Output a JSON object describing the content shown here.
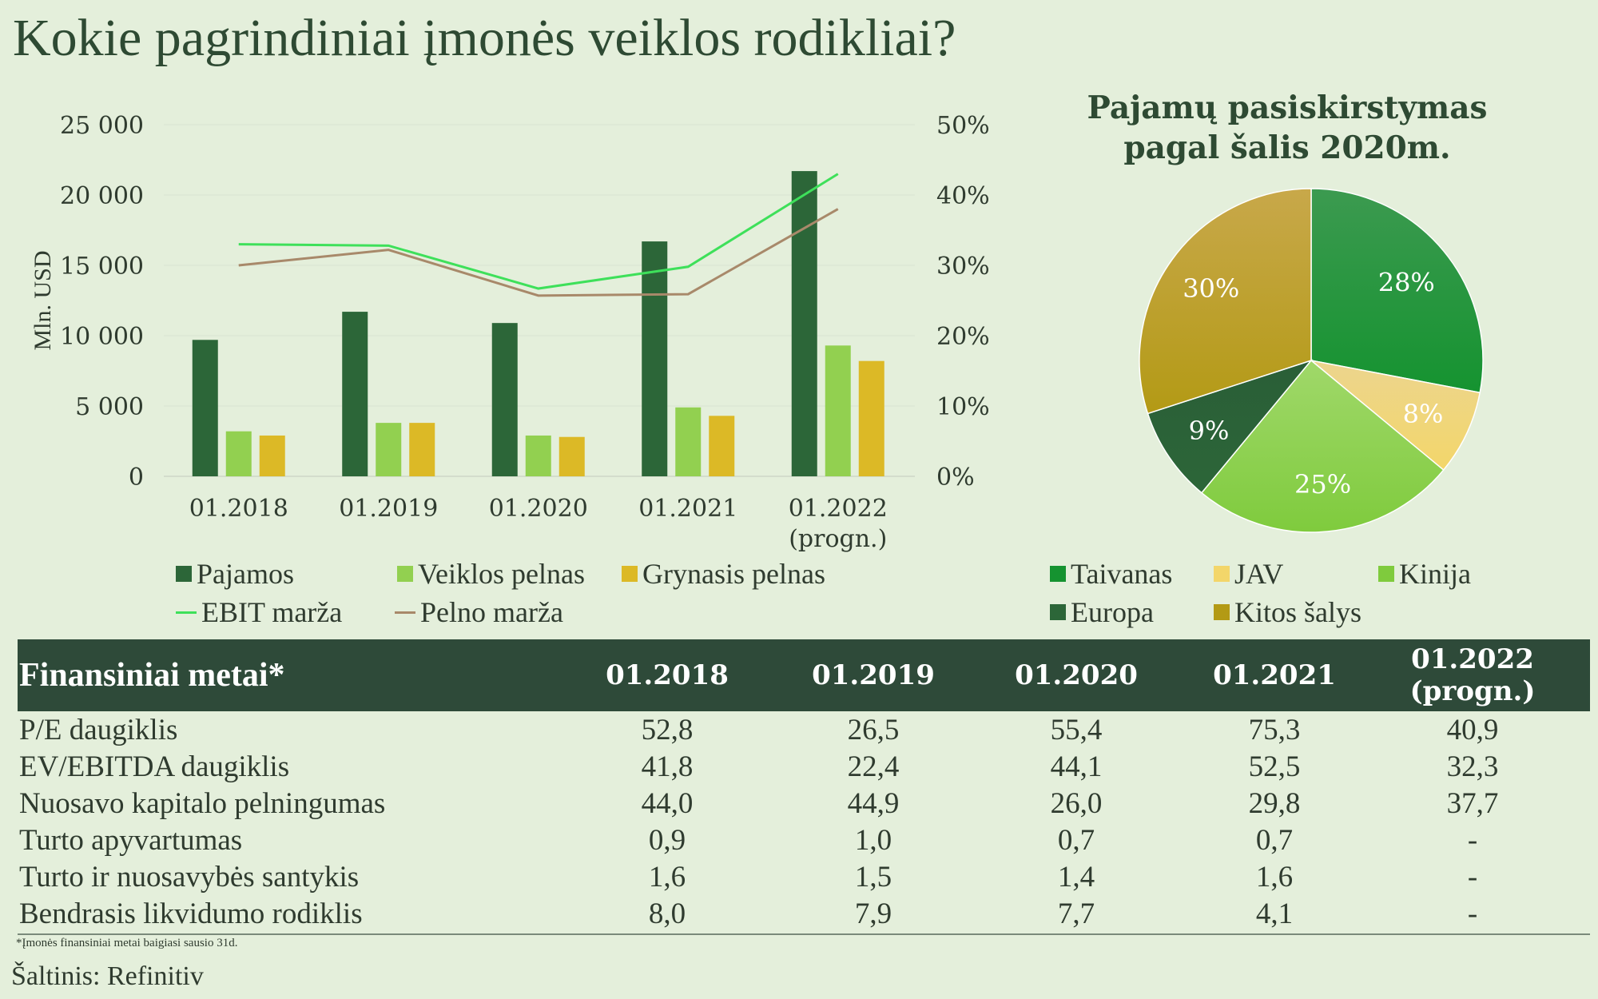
{
  "title": "Kokie pagrindiniai įmonės veiklos rodikliai?",
  "chart_data": [
    {
      "type": "bar",
      "categories": [
        "01.2018",
        "01.2019",
        "01.2020",
        "01.2021",
        "01.2022\n(progn.)"
      ],
      "ylabel": "Mln. USD",
      "ylim": [
        0,
        25000
      ],
      "yticks": [
        "0",
        "5 000",
        "10 000",
        "15 000",
        "20 000",
        "25 000"
      ],
      "y2lim": [
        0,
        0.5
      ],
      "y2ticks": [
        "0%",
        "10%",
        "20%",
        "30%",
        "40%",
        "50%"
      ],
      "grid": true,
      "legend_position": "bottom",
      "series": [
        {
          "name": "Pajamos",
          "kind": "bar",
          "axis": "left",
          "color": "#2c6638",
          "values": [
            9700,
            11700,
            10900,
            16700,
            21700
          ]
        },
        {
          "name": "Veiklos pelnas",
          "kind": "bar",
          "axis": "left",
          "color": "#92d050",
          "values": [
            3200,
            3800,
            2900,
            4900,
            9300
          ]
        },
        {
          "name": "Grynasis pelnas",
          "kind": "bar",
          "axis": "left",
          "color": "#dcb926",
          "values": [
            2900,
            3800,
            2800,
            4300,
            8200
          ]
        },
        {
          "name": "EBIT marža",
          "kind": "line",
          "axis": "right",
          "color": "#3ee05a",
          "values": [
            0.33,
            0.328,
            0.267,
            0.298,
            0.43
          ]
        },
        {
          "name": "Pelno marža",
          "kind": "line",
          "axis": "right",
          "color": "#a8896a",
          "values": [
            0.3,
            0.322,
            0.257,
            0.259,
            0.38
          ]
        }
      ]
    },
    {
      "type": "pie",
      "title": "Pajamų pasiskirstymas\npagal šalis 2020m.",
      "legend_position": "bottom",
      "slices": [
        {
          "label": "Taivanas",
          "value": 28,
          "display": "28%",
          "color": "#159330",
          "color2": "#3c9a50"
        },
        {
          "label": "JAV",
          "value": 8,
          "display": "8%",
          "color": "#f3d66a",
          "color2": "#ecd58e"
        },
        {
          "label": "Kinija",
          "value": 25,
          "display": "25%",
          "color": "#7fcb3d",
          "color2": "#a0d86a"
        },
        {
          "label": "Europa",
          "value": 9,
          "display": "9%",
          "color": "#2c6638",
          "color2": "#2a5e37"
        },
        {
          "label": "Kitos šalys",
          "value": 30,
          "display": "30%",
          "color": "#b39a15",
          "color2": "#c8a84a"
        }
      ]
    }
  ],
  "table": {
    "headers": [
      "Finansiniai metai*",
      "01.2018",
      "01.2019",
      "01.2020",
      "01.2021",
      "01.2022\n(progn.)"
    ],
    "rows": [
      [
        "P/E daugiklis",
        "52,8",
        "26,5",
        "55,4",
        "75,3",
        "40,9"
      ],
      [
        "EV/EBITDA daugiklis",
        "41,8",
        "22,4",
        "44,1",
        "52,5",
        "32,3"
      ],
      [
        "Nuosavo kapitalo pelningumas",
        "44,0",
        "44,9",
        "26,0",
        "29,8",
        "37,7"
      ],
      [
        "Turto apyvartumas",
        "0,9",
        "1,0",
        "0,7",
        "0,7",
        "-"
      ],
      [
        "Turto ir nuosavybės santykis",
        "1,6",
        "1,5",
        "1,4",
        "1,6",
        "-"
      ],
      [
        "Bendrasis likvidumo rodiklis",
        "8,0",
        "7,9",
        "7,7",
        "4,1",
        "-"
      ]
    ]
  },
  "footnote": "*Įmonės finansiniai metai baigiasi sausio 31d.",
  "source": "Šaltinis: Refinitiv"
}
